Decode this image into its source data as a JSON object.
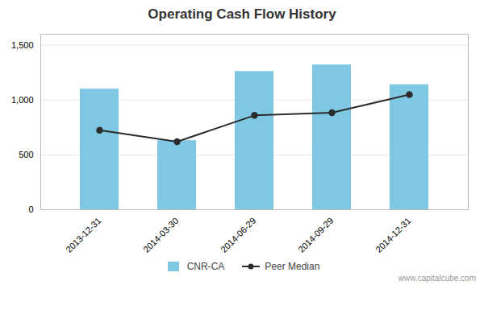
{
  "chart_data": {
    "type": "bar",
    "title": "Operating Cash Flow History",
    "categories": [
      "2013-12-31",
      "2014-03-30",
      "2014-06-29",
      "2014-09-29",
      "2014-12-31"
    ],
    "series": [
      {
        "name": "CNR-CA",
        "type": "bar",
        "color": "#7ec8e3",
        "values": [
          1100,
          630,
          1260,
          1320,
          1140
        ]
      },
      {
        "name": "Peer Median",
        "type": "line",
        "color": "#2b2b2b",
        "marker": "circle",
        "values": [
          725,
          620,
          860,
          885,
          1050
        ]
      }
    ],
    "ylim": [
      0,
      1600
    ],
    "yticks": [
      0,
      500,
      1000,
      1500
    ],
    "grid": true,
    "legend": "bottom",
    "annotations": [
      "www.capitalcube.com"
    ]
  }
}
